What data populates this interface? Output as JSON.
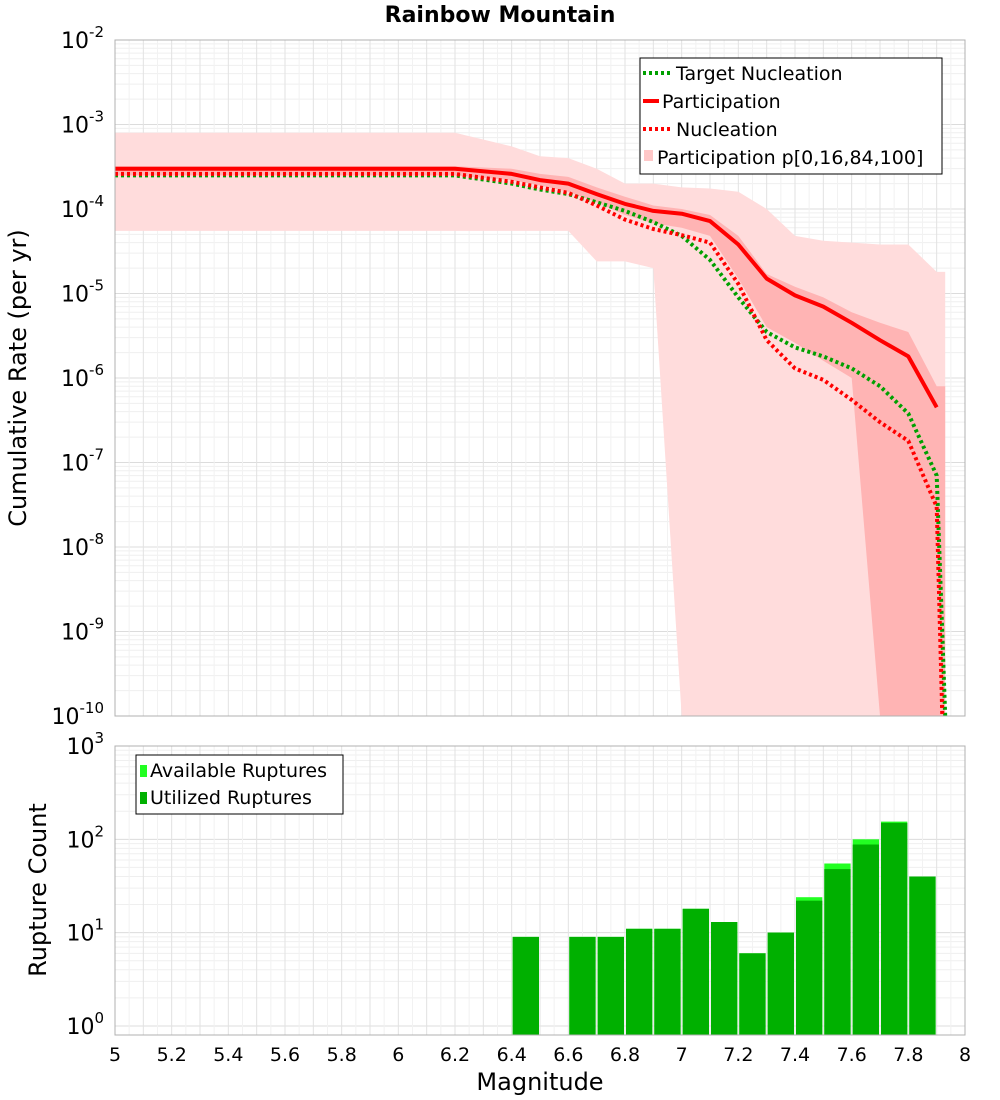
{
  "chart_data": [
    {
      "type": "line",
      "title": "Rainbow Mountain",
      "xlabel": "",
      "ylabel": "Cumulative Rate (per yr)",
      "yscale": "log",
      "xlim": [
        5,
        8
      ],
      "ylim": [
        1e-10,
        0.01
      ],
      "y_ticks": [
        {
          "base": "10",
          "exp": "-10"
        },
        {
          "base": "10",
          "exp": "-9"
        },
        {
          "base": "10",
          "exp": "-8"
        },
        {
          "base": "10",
          "exp": "-7"
        },
        {
          "base": "10",
          "exp": "-6"
        },
        {
          "base": "10",
          "exp": "-5"
        },
        {
          "base": "10",
          "exp": "-4"
        },
        {
          "base": "10",
          "exp": "-3"
        },
        {
          "base": "10",
          "exp": "-2"
        }
      ],
      "legend": [
        "Target Nucleation",
        "Participation",
        "Nucleation",
        "Participation p[0,16,84,100]"
      ],
      "colors": {
        "target": "#00a000",
        "participation": "#ff0000",
        "nucleation": "#ff0000",
        "band_outer": "#ffdcdc",
        "band_inner": "#ffb4b4"
      },
      "series": [
        {
          "name": "Target Nucleation",
          "style": "dotted",
          "x": [
            5.0,
            6.2,
            6.4,
            6.5,
            6.6,
            6.7,
            6.8,
            6.9,
            7.0,
            7.1,
            7.2,
            7.3,
            7.4,
            7.5,
            7.6,
            7.7,
            7.8,
            7.9,
            7.93
          ],
          "y": [
            0.00025,
            0.00025,
            0.0002,
            0.00017,
            0.00015,
            0.00012,
            9.5e-05,
            7e-05,
            4.8e-05,
            2.5e-05,
            9e-06,
            3.5e-06,
            2.3e-06,
            1.8e-06,
            1.3e-06,
            8e-07,
            3.8e-07,
            7e-08,
            1e-10
          ]
        },
        {
          "name": "Participation",
          "style": "solid",
          "x": [
            5.0,
            6.2,
            6.4,
            6.5,
            6.6,
            6.7,
            6.8,
            6.9,
            7.0,
            7.1,
            7.2,
            7.3,
            7.4,
            7.5,
            7.6,
            7.7,
            7.8,
            7.9
          ],
          "y": [
            0.0003,
            0.0003,
            0.00026,
            0.00022,
            0.0002,
            0.00015,
            0.000115,
            9.5e-05,
            8.8e-05,
            7.2e-05,
            3.8e-05,
            1.5e-05,
            9.5e-06,
            7e-06,
            4.5e-06,
            2.8e-06,
            1.8e-06,
            4.5e-07
          ]
        },
        {
          "name": "Nucleation",
          "style": "dotted",
          "x": [
            5.0,
            6.2,
            6.4,
            6.5,
            6.6,
            6.7,
            6.8,
            6.9,
            7.0,
            7.1,
            7.2,
            7.3,
            7.4,
            7.5,
            7.6,
            7.7,
            7.8,
            7.9,
            7.92
          ],
          "y": [
            0.00026,
            0.00026,
            0.00021,
            0.00018,
            0.000155,
            0.00011,
            7.5e-05,
            5.8e-05,
            4.9e-05,
            4e-05,
            1.3e-05,
            2.8e-06,
            1.3e-06,
            9.5e-07,
            5.5e-07,
            3e-07,
            1.8e-07,
            3e-08,
            1e-10
          ]
        }
      ],
      "band_outer": {
        "x": [
          5.0,
          6.2,
          6.4,
          6.5,
          6.6,
          6.7,
          6.8,
          6.9,
          7.0,
          7.1,
          7.2,
          7.3,
          7.4,
          7.5,
          7.6,
          7.7,
          7.8,
          7.9
        ],
        "lower": [
          5.5e-05,
          5.5e-05,
          5.5e-05,
          5.5e-05,
          5.5e-05,
          2.4e-05,
          2.4e-05,
          2e-05,
          1e-10,
          1e-10,
          1e-10,
          1e-10,
          1e-10,
          1e-10,
          1e-10,
          1e-10,
          1e-10,
          1e-10
        ],
        "upper": [
          0.0008,
          0.0008,
          0.00055,
          0.00042,
          0.0004,
          0.0003,
          0.0002,
          0.0002,
          0.00018,
          0.000175,
          0.00016,
          0.0001,
          4.8e-05,
          4.2e-05,
          4e-05,
          3.8e-05,
          3.8e-05,
          1.8e-05
        ]
      },
      "band_inner": {
        "x": [
          5.0,
          6.2,
          6.4,
          6.5,
          6.6,
          6.7,
          6.8,
          6.9,
          7.0,
          7.1,
          7.2,
          7.3,
          7.4,
          7.5,
          7.6,
          7.7,
          7.8,
          7.9
        ],
        "lower": [
          0.00025,
          0.00025,
          0.00022,
          0.00019,
          0.00016,
          0.00012,
          8.5e-05,
          6.8e-05,
          6e-05,
          4.8e-05,
          1.5e-05,
          4e-06,
          2.6e-06,
          1.6e-06,
          1e-06,
          1e-10,
          1e-10,
          1e-10
        ],
        "upper": [
          0.00032,
          0.00032,
          0.0003,
          0.00026,
          0.00024,
          0.00018,
          0.00014,
          0.00011,
          0.0001,
          8.5e-05,
          4.8e-05,
          1.7e-05,
          1.2e-05,
          9e-06,
          6e-06,
          4.5e-06,
          3.5e-06,
          8e-07
        ]
      }
    },
    {
      "type": "bar",
      "title": "",
      "xlabel": "Magnitude",
      "ylabel": "Rupture Count",
      "yscale": "log",
      "xlim": [
        5,
        8
      ],
      "ylim": [
        0.8,
        1000
      ],
      "x_ticks": [
        "5",
        "5.2",
        "5.4",
        "5.6",
        "5.8",
        "6",
        "6.2",
        "6.4",
        "6.6",
        "6.8",
        "7",
        "7.2",
        "7.4",
        "7.6",
        "7.8",
        "8"
      ],
      "y_ticks": [
        {
          "base": "10",
          "exp": "0"
        },
        {
          "base": "10",
          "exp": "1"
        },
        {
          "base": "10",
          "exp": "2"
        },
        {
          "base": "10",
          "exp": "3"
        }
      ],
      "legend": [
        "Available Ruptures",
        "Utilized Ruptures"
      ],
      "colors": {
        "available": "#22ff22",
        "utilized": "#00b000"
      },
      "bin_width": 0.1,
      "bin_centers": [
        6.45,
        6.65,
        6.75,
        6.85,
        6.95,
        7.05,
        7.15,
        7.25,
        7.35,
        7.45,
        7.55,
        7.65,
        7.75,
        7.85
      ],
      "series": [
        {
          "name": "Available Ruptures",
          "values": [
            9,
            9,
            9,
            11,
            11,
            18,
            13,
            6,
            10,
            24,
            55,
            100,
            155,
            40
          ]
        },
        {
          "name": "Utilized Ruptures",
          "values": [
            9,
            9,
            9,
            11,
            11,
            18,
            13,
            6,
            10,
            22,
            48,
            88,
            150,
            40
          ]
        }
      ]
    }
  ]
}
